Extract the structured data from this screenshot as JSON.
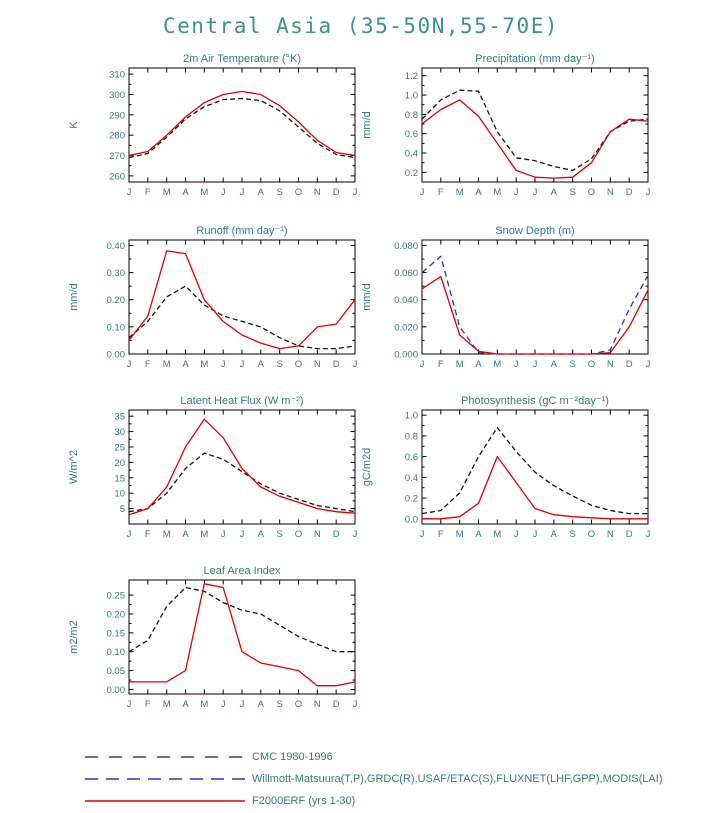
{
  "page_title": "Central Asia (35-50N,55-70E)",
  "colors": {
    "chart_text": "#2f7d7d",
    "axis": "#000000",
    "model_red": "#e10000",
    "obs_black": "#141414",
    "obs_blue": "#2633cc"
  },
  "legend": [
    {
      "label": "CMC 1980-1996",
      "color": "#444444",
      "dash": "13,11"
    },
    {
      "label": "Willmott-Matsuura(T,P),GRDC(R),USAF/ETAC(S),FLUXNET(LHF,GPP),MODIS(LAI)",
      "color": "#2633cc",
      "dash": "13,8"
    },
    {
      "label": "F2000ERF (yrs 1-30)",
      "color": "#e10000",
      "dash": ""
    }
  ],
  "chart_data": [
    {
      "type": "line",
      "title": "2m Air Temperature (°K)",
      "ylabel": "K",
      "categories": [
        "J",
        "F",
        "M",
        "A",
        "M",
        "J",
        "J",
        "A",
        "S",
        "O",
        "N",
        "D",
        "J"
      ],
      "ylim": [
        257,
        313
      ],
      "ytick_values": [
        260,
        270,
        280,
        290,
        300,
        310
      ],
      "ytick_labels": [
        "260",
        "270",
        "280",
        "290",
        "300",
        "310"
      ],
      "series": [
        {
          "name": "CMC 1980-1996",
          "color": "#141414",
          "dash": "5,3",
          "values": [
            269,
            271,
            279,
            288,
            294,
            297.5,
            298,
            297,
            292,
            284,
            276,
            270.5,
            269
          ]
        },
        {
          "name": "F2000ERF (yrs 1-30)",
          "color": "#e10000",
          "dash": "",
          "values": [
            270,
            272,
            280,
            289,
            296,
            300,
            301.5,
            300,
            294.5,
            286.5,
            277.5,
            271.5,
            270
          ]
        }
      ]
    },
    {
      "type": "line",
      "title": "Precipitation (mm day⁻¹)",
      "ylabel": "mm/d",
      "categories": [
        "J",
        "F",
        "M",
        "A",
        "M",
        "J",
        "J",
        "A",
        "S",
        "O",
        "N",
        "D",
        "J"
      ],
      "ylim": [
        0.1,
        1.28
      ],
      "ytick_values": [
        0.2,
        0.4,
        0.6,
        0.8,
        1.0,
        1.2
      ],
      "ytick_labels": [
        "0.2",
        "0.4",
        "0.6",
        "0.8",
        "1.0",
        "1.2"
      ],
      "series": [
        {
          "name": "CMC 1980-1996",
          "color": "#141414",
          "dash": "5,3",
          "values": [
            0.75,
            0.95,
            1.05,
            1.04,
            0.62,
            0.35,
            0.32,
            0.26,
            0.22,
            0.34,
            0.62,
            0.73,
            0.75
          ]
        },
        {
          "name": "F2000ERF (yrs 1-30)",
          "color": "#e10000",
          "dash": "",
          "values": [
            0.7,
            0.85,
            0.95,
            0.78,
            0.5,
            0.22,
            0.15,
            0.14,
            0.15,
            0.3,
            0.62,
            0.75,
            0.73
          ]
        }
      ]
    },
    {
      "type": "line",
      "title": "Runoff (mm day⁻¹)",
      "ylabel": "mm/d",
      "categories": [
        "J",
        "F",
        "M",
        "A",
        "M",
        "J",
        "J",
        "A",
        "S",
        "O",
        "N",
        "D",
        "J"
      ],
      "ylim": [
        0,
        0.42
      ],
      "ytick_values": [
        0.0,
        0.1,
        0.2,
        0.3,
        0.4
      ],
      "ytick_labels": [
        "0.00",
        "0.10",
        "0.20",
        "0.30",
        "0.40"
      ],
      "series": [
        {
          "name": "CMC 1980-1996",
          "color": "#141414",
          "dash": "5,3",
          "values": [
            0.06,
            0.12,
            0.21,
            0.25,
            0.18,
            0.14,
            0.12,
            0.1,
            0.06,
            0.03,
            0.02,
            0.02,
            0.03
          ]
        },
        {
          "name": "F2000ERF (yrs 1-30)",
          "color": "#e10000",
          "dash": "",
          "values": [
            0.05,
            0.14,
            0.38,
            0.37,
            0.2,
            0.12,
            0.07,
            0.04,
            0.02,
            0.03,
            0.1,
            0.11,
            0.2
          ]
        }
      ]
    },
    {
      "type": "line",
      "title": "Snow Depth (m)",
      "ylabel": "mm/d",
      "categories": [
        "J",
        "F",
        "M",
        "A",
        "M",
        "J",
        "J",
        "A",
        "S",
        "O",
        "N",
        "D",
        "J"
      ],
      "ylim": [
        0,
        0.084
      ],
      "ytick_values": [
        0.0,
        0.02,
        0.04,
        0.06,
        0.08
      ],
      "ytick_labels": [
        "0.000",
        "0.020",
        "0.040",
        "0.060",
        "0.080"
      ],
      "series": [
        {
          "name": "Willmott-Matsuura(T,P),GRDC(R),USAF/ETAC(S),FLUXNET(LHF,GPP),MODIS(LAI)",
          "color": "#2633cc",
          "dash": "6,4",
          "values": [
            0.06,
            0.072,
            0.02,
            0.001,
            0.0,
            0.0,
            0.0,
            0.0,
            0.0,
            0.0,
            0.003,
            0.033,
            0.058
          ]
        },
        {
          "name": "F2000ERF (yrs 1-30)",
          "color": "#e10000",
          "dash": "",
          "values": [
            0.048,
            0.057,
            0.014,
            0.002,
            0.0,
            0.0,
            0.0,
            0.0,
            0.0,
            0.0,
            0.001,
            0.02,
            0.047
          ]
        }
      ]
    },
    {
      "type": "line",
      "title": "Latent Heat Flux (W m⁻²)",
      "ylabel": "W/m^2",
      "categories": [
        "J",
        "F",
        "M",
        "A",
        "M",
        "J",
        "J",
        "A",
        "S",
        "O",
        "N",
        "D",
        "J"
      ],
      "ylim": [
        0,
        37
      ],
      "ytick_values": [
        5,
        10,
        15,
        20,
        25,
        30,
        35
      ],
      "ytick_labels": [
        "5",
        "10",
        "15",
        "20",
        "25",
        "30",
        "35"
      ],
      "series": [
        {
          "name": "CMC 1980-1996",
          "color": "#141414",
          "dash": "5,3",
          "values": [
            4,
            5,
            10,
            18,
            23,
            21,
            17,
            13,
            10,
            8,
            6,
            5,
            4
          ]
        },
        {
          "name": "F2000ERF (yrs 1-30)",
          "color": "#e10000",
          "dash": "",
          "values": [
            3,
            5,
            12,
            25,
            34,
            28,
            18,
            12,
            9,
            7,
            5,
            4,
            3.5
          ]
        }
      ]
    },
    {
      "type": "line",
      "title": "Photosynthesis (gC m⁻²day⁻¹)",
      "ylabel": "gC/m2d",
      "categories": [
        "J",
        "F",
        "M",
        "A",
        "M",
        "J",
        "J",
        "A",
        "S",
        "O",
        "N",
        "D",
        "J"
      ],
      "ylim": [
        -0.05,
        1.05
      ],
      "ytick_values": [
        0.0,
        0.2,
        0.4,
        0.6,
        0.8,
        1.0
      ],
      "ytick_labels": [
        "0.0",
        "0.2",
        "0.4",
        "0.6",
        "0.8",
        "1.0"
      ],
      "series": [
        {
          "name": "CMC 1980-1996",
          "color": "#141414",
          "dash": "5,3",
          "values": [
            0.05,
            0.08,
            0.25,
            0.6,
            0.88,
            0.65,
            0.45,
            0.32,
            0.22,
            0.13,
            0.08,
            0.05,
            0.05
          ]
        },
        {
          "name": "F2000ERF (yrs 1-30)",
          "color": "#e10000",
          "dash": "",
          "values": [
            0.0,
            0.0,
            0.02,
            0.15,
            0.6,
            0.35,
            0.1,
            0.04,
            0.02,
            0.01,
            0.0,
            0.0,
            0.0
          ]
        }
      ]
    },
    {
      "type": "line",
      "title": "Leaf Area Index",
      "ylabel": "m2/m2",
      "categories": [
        "J",
        "F",
        "M",
        "A",
        "M",
        "J",
        "J",
        "A",
        "S",
        "O",
        "N",
        "D",
        "J"
      ],
      "ylim": [
        -0.012,
        0.29
      ],
      "ytick_values": [
        0.0,
        0.05,
        0.1,
        0.15,
        0.2,
        0.25
      ],
      "ytick_labels": [
        "0.00",
        "0.05",
        "0.10",
        "0.15",
        "0.20",
        "0.25"
      ],
      "series": [
        {
          "name": "CMC 1980-1996",
          "color": "#141414",
          "dash": "5,3",
          "values": [
            0.1,
            0.13,
            0.22,
            0.27,
            0.26,
            0.23,
            0.21,
            0.2,
            0.17,
            0.14,
            0.12,
            0.1,
            0.1
          ]
        },
        {
          "name": "F2000ERF (yrs 1-30)",
          "color": "#e10000",
          "dash": "",
          "values": [
            0.02,
            0.02,
            0.02,
            0.05,
            0.28,
            0.27,
            0.1,
            0.07,
            0.06,
            0.05,
            0.01,
            0.01,
            0.02
          ]
        }
      ]
    }
  ]
}
